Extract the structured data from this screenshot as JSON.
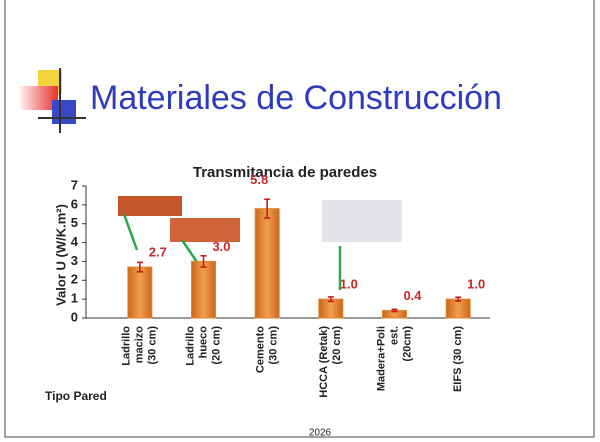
{
  "slide_title": "Materiales de Construcción",
  "footer": "2026",
  "chart_data": {
    "type": "bar",
    "title": "Transmitancia de paredes",
    "y_label": "Valor U (W/K.m²)",
    "x_label": "Tipo Pared",
    "categories": [
      [
        "Ladrillo",
        "macizo",
        "(30 cm)"
      ],
      [
        "Ladrillo",
        "hueco",
        "(20 cm)"
      ],
      [
        "Cemento",
        "(30 cm)"
      ],
      [
        "HCCA (Retak)",
        "(20 cm)"
      ],
      [
        "Madera+Poli",
        "est.",
        "(20cm)"
      ],
      [
        "EIFS (30 cm)"
      ]
    ],
    "values": [
      2.7,
      3.0,
      5.8,
      1.0,
      0.4,
      1.0
    ],
    "value_labels": [
      "2.7",
      "3.0",
      "5.8",
      "1.0",
      "0.4",
      "1.0"
    ],
    "errors": [
      0.25,
      0.3,
      0.5,
      0.12,
      0.06,
      0.1
    ],
    "color": "#e08530",
    "label_color": "#c8282b",
    "error_color": "#c0141c",
    "ylim": [
      0,
      7
    ],
    "yticks": [
      0,
      1,
      2,
      3,
      4,
      5,
      6,
      7
    ]
  }
}
